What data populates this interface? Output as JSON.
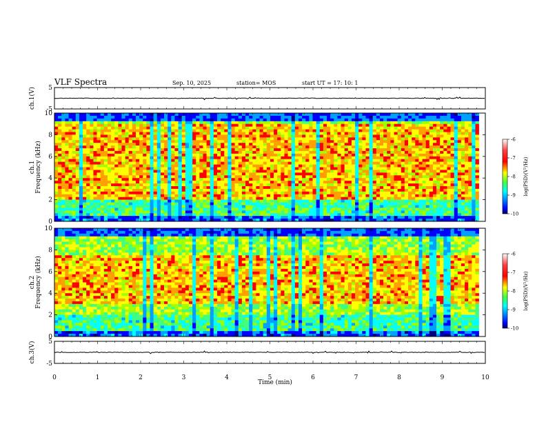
{
  "header": {
    "title": "VLF Spectra",
    "date": "Sep. 10, 2025",
    "station": "station= MOS",
    "start_ut": "start  UT =    17: 10: 1"
  },
  "colors": {
    "colormap": [
      "#000080",
      "#0000ff",
      "#00a0ff",
      "#00ffff",
      "#40ff80",
      "#a0ff00",
      "#ffff00",
      "#ffa000",
      "#ff0000",
      "#ffffff"
    ]
  },
  "chart_data": [
    {
      "type": "line",
      "id": "ch1-waveform",
      "ylabel": "ch.1(V)",
      "ylim": [
        -5,
        5
      ],
      "y_ticks": [
        "5",
        "-5"
      ],
      "xlim": [
        0,
        10
      ],
      "baseline": 0,
      "grid": false
    },
    {
      "type": "heatmap",
      "id": "ch1-spectrogram",
      "ylabel": "ch.1\nFrequency  (kHz)",
      "ylim": [
        0,
        10
      ],
      "y_ticks": [
        "0",
        "2",
        "4",
        "6",
        "8",
        "10"
      ],
      "xlim": [
        0,
        9.85
      ],
      "colorbar": {
        "label": "log(PSD)(V²/Hz)",
        "range": [
          -10,
          -6
        ],
        "ticks": [
          "-6",
          "-7",
          "-8",
          "-9",
          "-10"
        ]
      },
      "dominant_band_khz": [
        2,
        9
      ]
    },
    {
      "type": "heatmap",
      "id": "ch2-spectrogram",
      "ylabel": "ch.2\nFrequency  (kHz)",
      "ylim": [
        0,
        10
      ],
      "y_ticks": [
        "0",
        "2",
        "4",
        "6",
        "8",
        "10"
      ],
      "xlim": [
        0,
        9.85
      ],
      "colorbar": {
        "label": "log(PSD)(V²/Hz)",
        "range": [
          -10,
          -6
        ],
        "ticks": [
          "-6",
          "-7",
          "-8",
          "-9",
          "-10"
        ]
      },
      "dominant_band_khz": [
        3,
        7.5
      ]
    },
    {
      "type": "line",
      "id": "ch3-waveform",
      "ylabel": "ch.3(V)",
      "ylim": [
        -5,
        5
      ],
      "y_ticks": [
        "5",
        "-5"
      ],
      "xlim": [
        0,
        10
      ],
      "baseline": 0,
      "grid": false
    }
  ],
  "x_axis": {
    "label": "Time  (min)",
    "range": [
      0,
      10
    ],
    "ticks": [
      "0",
      "1",
      "2",
      "3",
      "4",
      "5",
      "6",
      "7",
      "8",
      "9",
      "10"
    ]
  },
  "colorbar_labels": {
    "ch1": "log(PSD)(V²/Hz)",
    "ch2": "log(PSD)(V²/Hz)"
  }
}
